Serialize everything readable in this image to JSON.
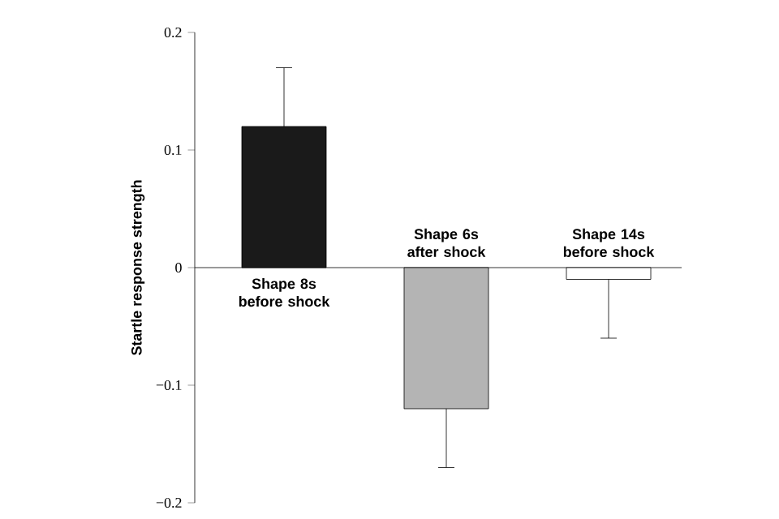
{
  "chart_data": {
    "type": "bar",
    "ylabel": "Startle response strength",
    "categories": [
      "Shape 8s before shock",
      "Shape 6s after shock",
      "Shape 14s before shock"
    ],
    "values": [
      0.12,
      -0.12,
      -0.01
    ],
    "errors": [
      [
        0.12,
        0.17
      ],
      [
        -0.17,
        -0.12
      ],
      [
        -0.06,
        -0.01
      ]
    ],
    "colors": [
      "#1a1a1a",
      "#b4b4b4",
      "#ffffff"
    ],
    "ylim": [
      -0.2,
      0.2
    ],
    "yticks": [
      {
        "value": -0.2,
        "label": "−0.2"
      },
      {
        "value": -0.1,
        "label": "−0.1"
      },
      0,
      0.1,
      0.2
    ],
    "grid": false
  }
}
